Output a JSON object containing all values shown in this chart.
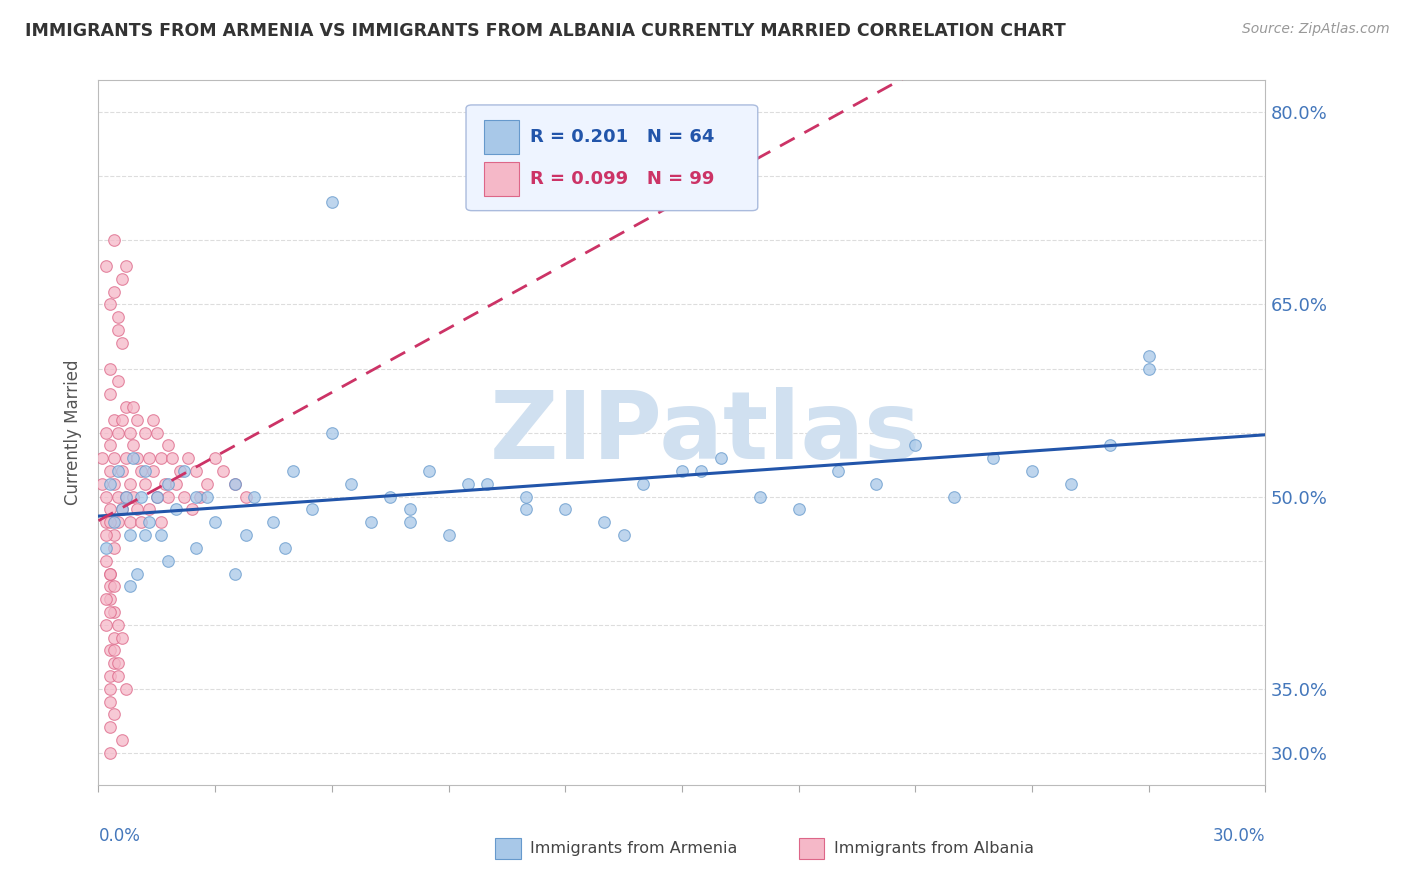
{
  "title": "IMMIGRANTS FROM ARMENIA VS IMMIGRANTS FROM ALBANIA CURRENTLY MARRIED CORRELATION CHART",
  "source": "Source: ZipAtlas.com",
  "ylabel": "Currently Married",
  "ytick_positions": [
    0.3,
    0.35,
    0.4,
    0.45,
    0.5,
    0.55,
    0.6,
    0.65,
    0.7,
    0.75,
    0.8
  ],
  "ytick_labels_shown": {
    "0.30": "30.0%",
    "0.35": "35.0%",
    "0.50": "50.0%",
    "0.65": "65.0%",
    "0.80": "80.0%"
  },
  "xlim": [
    0.0,
    0.3
  ],
  "ylim": [
    0.275,
    0.825
  ],
  "series1_label": "Immigrants from Armenia",
  "series1_R": "0.201",
  "series1_N": "64",
  "series1_color": "#A8C8E8",
  "series1_edge_color": "#6699CC",
  "series1_trend_color": "#2255AA",
  "series2_label": "Immigrants from Albania",
  "series2_R": "0.099",
  "series2_N": "99",
  "series2_color": "#F5B8C8",
  "series2_edge_color": "#DD6688",
  "series2_trend_color": "#CC3366",
  "watermark": "ZIPatlas",
  "watermark_color": "#D0E0F0",
  "background_color": "#FFFFFF",
  "grid_color": "#DDDDDD",
  "title_color": "#333333",
  "tick_label_color": "#4477BB",
  "legend_box_color": "#EEF4FF",
  "legend_border_color": "#AABBDD",
  "armenia_x": [
    0.002,
    0.003,
    0.004,
    0.005,
    0.006,
    0.007,
    0.008,
    0.009,
    0.01,
    0.011,
    0.012,
    0.013,
    0.015,
    0.016,
    0.018,
    0.02,
    0.022,
    0.025,
    0.028,
    0.03,
    0.035,
    0.038,
    0.04,
    0.045,
    0.05,
    0.055,
    0.06,
    0.065,
    0.07,
    0.075,
    0.08,
    0.085,
    0.09,
    0.1,
    0.11,
    0.12,
    0.13,
    0.14,
    0.15,
    0.16,
    0.17,
    0.18,
    0.19,
    0.2,
    0.21,
    0.22,
    0.23,
    0.24,
    0.25,
    0.26,
    0.27,
    0.008,
    0.012,
    0.018,
    0.025,
    0.035,
    0.048,
    0.06,
    0.08,
    0.095,
    0.11,
    0.135,
    0.155,
    0.27
  ],
  "armenia_y": [
    0.46,
    0.51,
    0.48,
    0.52,
    0.49,
    0.5,
    0.47,
    0.53,
    0.44,
    0.5,
    0.52,
    0.48,
    0.5,
    0.47,
    0.51,
    0.49,
    0.52,
    0.46,
    0.5,
    0.48,
    0.51,
    0.47,
    0.5,
    0.48,
    0.52,
    0.49,
    0.73,
    0.51,
    0.48,
    0.5,
    0.49,
    0.52,
    0.47,
    0.51,
    0.5,
    0.49,
    0.48,
    0.51,
    0.52,
    0.53,
    0.5,
    0.49,
    0.52,
    0.51,
    0.54,
    0.5,
    0.53,
    0.52,
    0.51,
    0.54,
    0.61,
    0.43,
    0.47,
    0.45,
    0.5,
    0.44,
    0.46,
    0.55,
    0.48,
    0.51,
    0.49,
    0.47,
    0.52,
    0.6
  ],
  "albania_x": [
    0.001,
    0.001,
    0.002,
    0.002,
    0.002,
    0.003,
    0.003,
    0.003,
    0.003,
    0.004,
    0.004,
    0.004,
    0.004,
    0.005,
    0.005,
    0.005,
    0.005,
    0.006,
    0.006,
    0.006,
    0.007,
    0.007,
    0.007,
    0.008,
    0.008,
    0.008,
    0.009,
    0.009,
    0.009,
    0.01,
    0.01,
    0.01,
    0.011,
    0.011,
    0.012,
    0.012,
    0.013,
    0.013,
    0.014,
    0.014,
    0.015,
    0.015,
    0.016,
    0.016,
    0.017,
    0.018,
    0.018,
    0.019,
    0.02,
    0.021,
    0.022,
    0.023,
    0.024,
    0.025,
    0.026,
    0.028,
    0.03,
    0.032,
    0.035,
    0.038,
    0.002,
    0.003,
    0.004,
    0.005,
    0.006,
    0.003,
    0.004,
    0.005,
    0.006,
    0.007,
    0.003,
    0.004,
    0.005,
    0.002,
    0.003,
    0.004,
    0.003,
    0.004,
    0.003,
    0.002,
    0.003,
    0.003,
    0.004,
    0.003,
    0.002,
    0.003,
    0.004,
    0.003,
    0.002,
    0.003,
    0.004,
    0.003,
    0.005,
    0.006,
    0.004,
    0.005,
    0.006,
    0.007,
    0.003
  ],
  "albania_y": [
    0.51,
    0.53,
    0.5,
    0.55,
    0.48,
    0.52,
    0.58,
    0.54,
    0.49,
    0.56,
    0.51,
    0.47,
    0.53,
    0.55,
    0.5,
    0.48,
    0.59,
    0.52,
    0.56,
    0.49,
    0.53,
    0.57,
    0.5,
    0.55,
    0.51,
    0.48,
    0.54,
    0.5,
    0.57,
    0.53,
    0.49,
    0.56,
    0.52,
    0.48,
    0.55,
    0.51,
    0.53,
    0.49,
    0.56,
    0.52,
    0.55,
    0.5,
    0.53,
    0.48,
    0.51,
    0.54,
    0.5,
    0.53,
    0.51,
    0.52,
    0.5,
    0.53,
    0.49,
    0.52,
    0.5,
    0.51,
    0.53,
    0.52,
    0.51,
    0.5,
    0.68,
    0.65,
    0.7,
    0.63,
    0.67,
    0.6,
    0.66,
    0.64,
    0.62,
    0.68,
    0.43,
    0.41,
    0.4,
    0.47,
    0.44,
    0.46,
    0.38,
    0.37,
    0.36,
    0.45,
    0.42,
    0.48,
    0.39,
    0.35,
    0.4,
    0.41,
    0.33,
    0.34,
    0.42,
    0.44,
    0.38,
    0.32,
    0.36,
    0.39,
    0.43,
    0.37,
    0.31,
    0.35,
    0.3
  ]
}
